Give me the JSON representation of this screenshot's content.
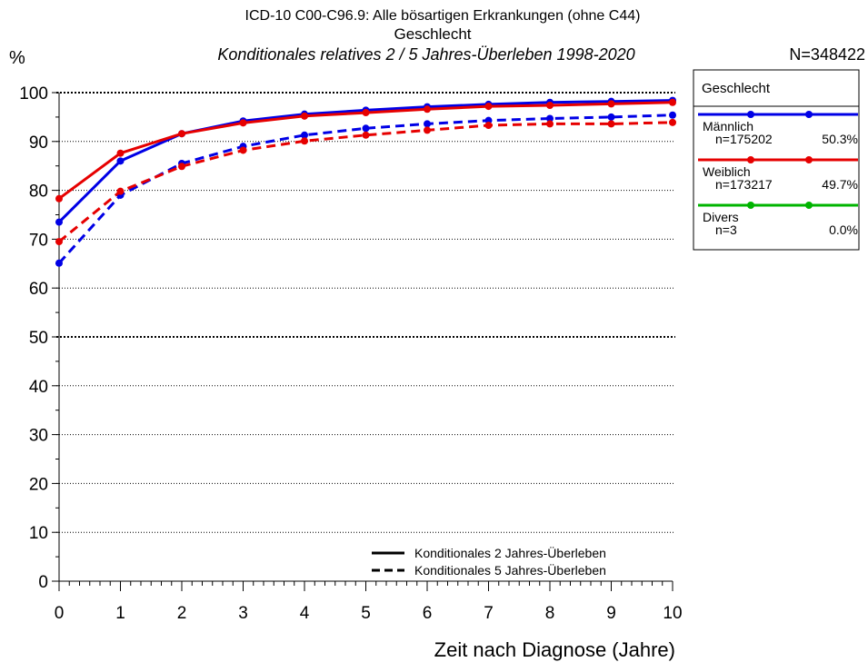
{
  "chart_data": {
    "type": "line",
    "title": "ICD-10 C00-C96.9: Alle bösartigen Erkrankungen (ohne C44)",
    "subtitle": "Geschlecht",
    "subtitle2": "Konditionales relatives 2 / 5 Jahres-Überleben 1998-2020",
    "n_total": "N=348422",
    "ylabel": "%",
    "xlabel": "Zeit nach Diagnose (Jahre)",
    "xlim": [
      0,
      10
    ],
    "ylim": [
      0,
      100
    ],
    "x_ticks": [
      0,
      1,
      2,
      3,
      4,
      5,
      6,
      7,
      8,
      9,
      10
    ],
    "y_ticks": [
      0,
      10,
      20,
      30,
      40,
      50,
      60,
      70,
      80,
      90,
      100
    ],
    "grid": true,
    "legend_placement": "right",
    "legend": {
      "title": "Geschlecht",
      "entries": [
        {
          "name": "Männlich",
          "n": "n=175202",
          "pct": "50.3%",
          "color": "#0000e6"
        },
        {
          "name": "Weiblich",
          "n": "n=173217",
          "pct": "49.7%",
          "color": "#e60000"
        },
        {
          "name": "Divers",
          "n": "n=3",
          "pct": "0.0%",
          "color": "#00b400"
        }
      ]
    },
    "line_style_legend": [
      {
        "label": "Konditionales 2 Jahres-Überleben",
        "style": "solid"
      },
      {
        "label": "Konditionales 5 Jahres-Überleben",
        "style": "dashed"
      }
    ],
    "series": [
      {
        "name": "Männlich",
        "measure": "Konditionales 2 Jahres-Überleben",
        "color": "#0000e6",
        "style": "solid",
        "x": [
          0,
          1,
          2,
          3,
          4,
          5,
          6,
          7,
          8,
          9,
          10
        ],
        "values": [
          73.5,
          86,
          91.6,
          94.2,
          95.6,
          96.4,
          97.1,
          97.6,
          98,
          98.2,
          98.4
        ]
      },
      {
        "name": "Weiblich",
        "measure": "Konditionales 2 Jahres-Überleben",
        "color": "#e60000",
        "style": "solid",
        "x": [
          0,
          1,
          2,
          3,
          4,
          5,
          6,
          7,
          8,
          9,
          10
        ],
        "values": [
          78.3,
          87.6,
          91.6,
          93.8,
          95.2,
          95.9,
          96.6,
          97.2,
          97.4,
          97.7,
          98
        ]
      },
      {
        "name": "Männlich",
        "measure": "Konditionales 5 Jahres-Überleben",
        "color": "#0000e6",
        "style": "dashed",
        "x": [
          0,
          1,
          2,
          3,
          4,
          5,
          6,
          7,
          8,
          9,
          10
        ],
        "values": [
          65.1,
          79,
          85.5,
          89,
          91.3,
          92.7,
          93.6,
          94.3,
          94.7,
          95,
          95.4
        ]
      },
      {
        "name": "Weiblich",
        "measure": "Konditionales 5 Jahres-Überleben",
        "color": "#e60000",
        "style": "dashed",
        "x": [
          0,
          1,
          2,
          3,
          4,
          5,
          6,
          7,
          8,
          9,
          10
        ],
        "values": [
          69.5,
          79.8,
          84.9,
          88.2,
          90.1,
          91.3,
          92.3,
          93.3,
          93.6,
          93.6,
          93.9
        ]
      }
    ]
  }
}
